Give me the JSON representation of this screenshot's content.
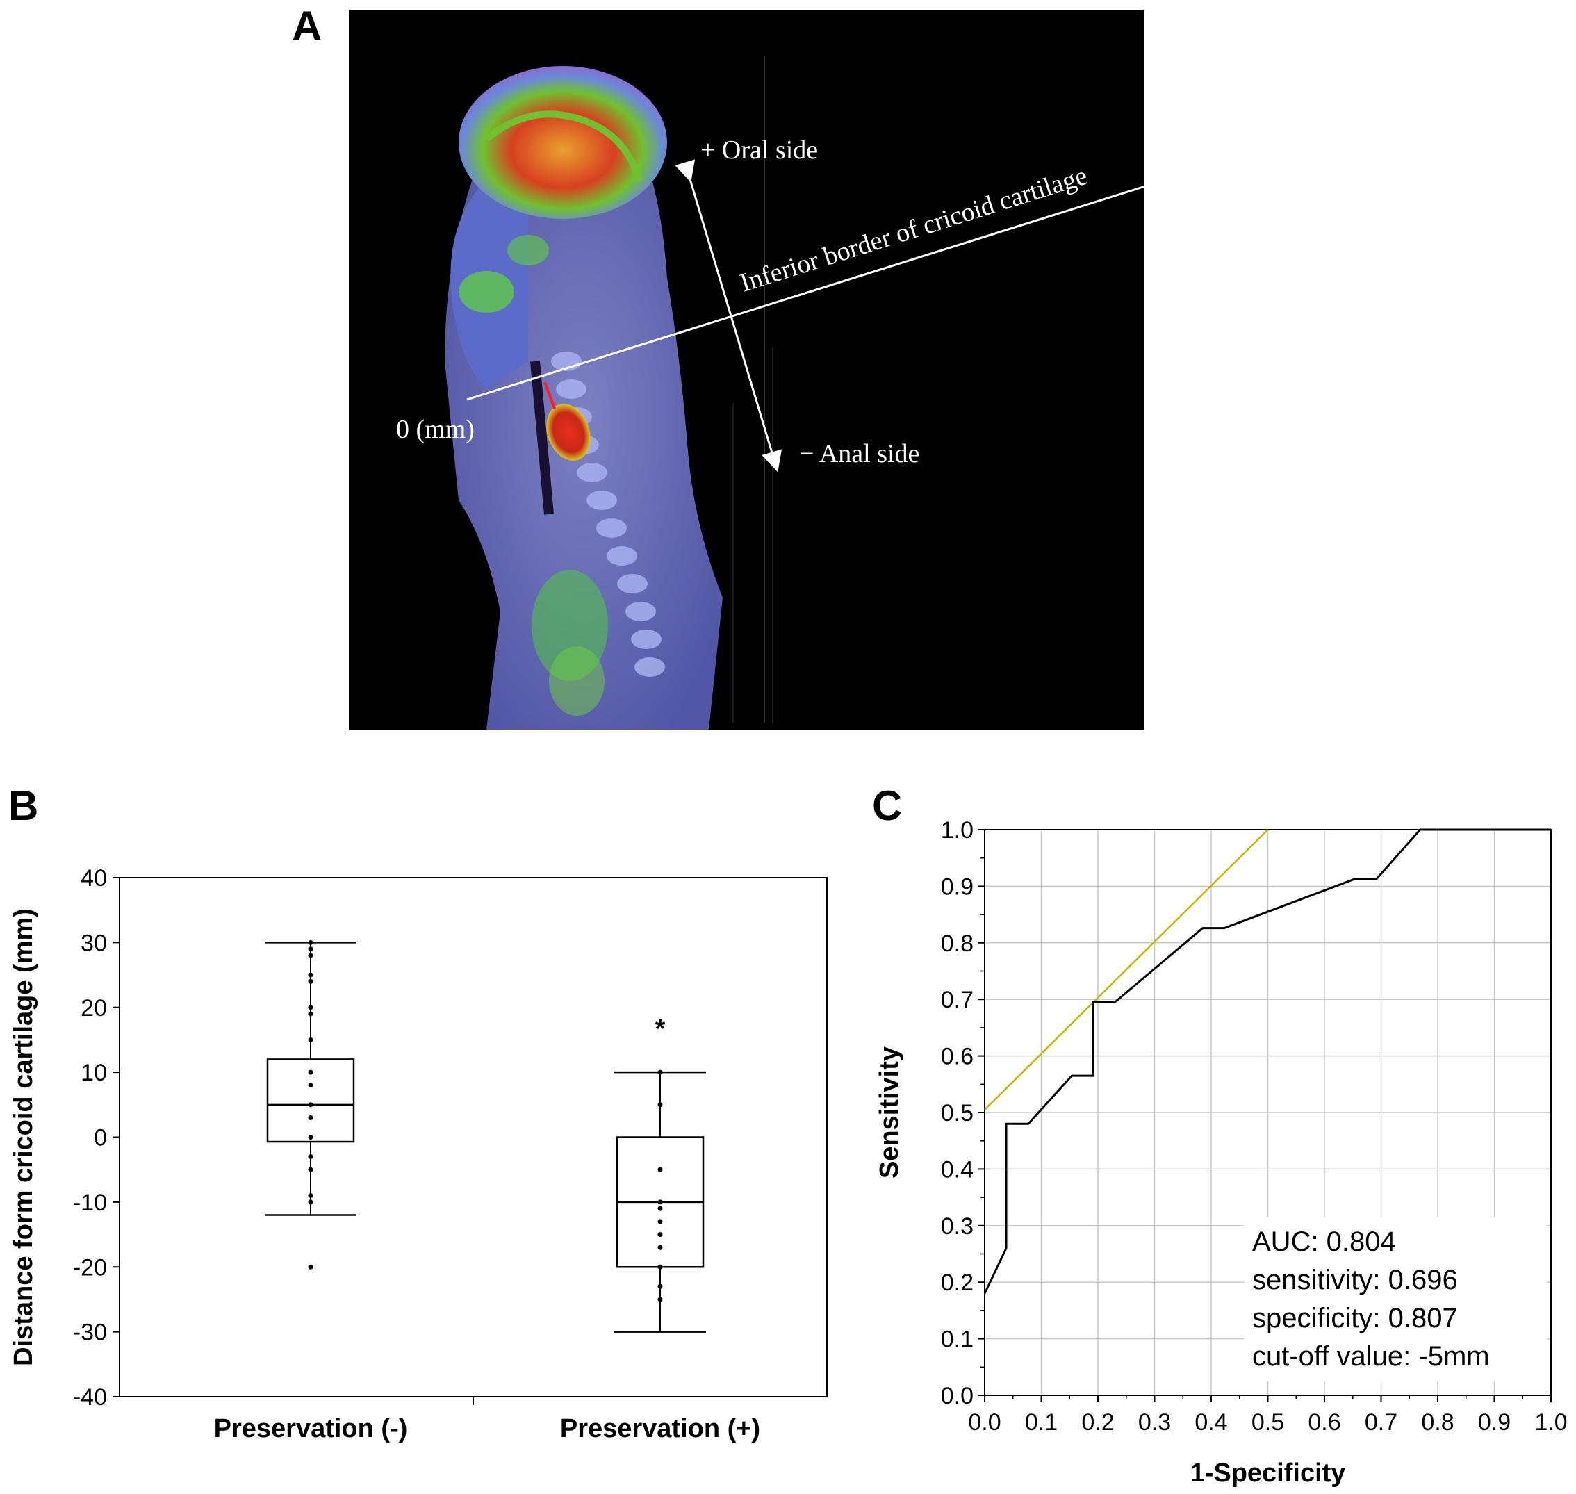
{
  "panels": {
    "a": "A",
    "b": "B",
    "c": "C"
  },
  "scan": {
    "oral_label": "+  Oral side",
    "anal_label": "−  Anal side",
    "line_label": "Inferior border of cricoid cartilage",
    "zero_label": "0 (mm)"
  },
  "chart_data": [
    {
      "type": "box",
      "panel": "B",
      "ylabel": "Distance form cricoid cartilage (mm)",
      "ylim": [
        -40,
        40
      ],
      "yticks": [
        40,
        30,
        20,
        10,
        0,
        -10,
        -20,
        -30,
        -40
      ],
      "categories": [
        "Preservation (-)",
        "Preservation (+)"
      ],
      "boxes": [
        {
          "name": "Preservation (-)",
          "whisker_low": -12,
          "q1": -0.7,
          "median": 5,
          "q3": 12,
          "whisker_high": 30,
          "points": [
            30,
            29,
            28,
            25,
            24,
            20,
            19,
            15,
            10,
            8,
            5,
            3,
            0,
            -3,
            -5,
            -9,
            -10,
            -20
          ]
        },
        {
          "name": "Preservation (+)",
          "whisker_low": -30,
          "q1": -20,
          "median": -10,
          "q3": 0,
          "whisker_high": 10,
          "points": [
            10,
            5,
            -5,
            -10,
            -11,
            -13,
            -15,
            -17,
            -20,
            -23,
            -25
          ],
          "annotation": "*"
        }
      ]
    },
    {
      "type": "line",
      "panel": "C",
      "xlabel": "1-Specificity",
      "ylabel": "Sensitivity",
      "xlim": [
        0,
        1
      ],
      "ylim": [
        0,
        1
      ],
      "xticks": [
        "0.0",
        "0.1",
        "0.2",
        "0.3",
        "0.4",
        "0.5",
        "0.6",
        "0.7",
        "0.8",
        "0.9",
        "1.0"
      ],
      "yticks": [
        "1.0",
        "0.9",
        "0.8",
        "0.7",
        "0.6",
        "0.5",
        "0.4",
        "0.3",
        "0.2",
        "0.1",
        "0.0"
      ],
      "grid": true,
      "roc": {
        "x": [
          0,
          0.038,
          0.038,
          0.077,
          0.154,
          0.192,
          0.192,
          0.231,
          0.385,
          0.423,
          0.654,
          0.692,
          0.769,
          1.0
        ],
        "y": [
          0.18,
          0.26,
          0.48,
          0.48,
          0.565,
          0.565,
          0.696,
          0.696,
          0.826,
          0.826,
          0.913,
          0.913,
          1.0,
          1.0
        ]
      },
      "tangent": {
        "x": [
          0,
          0.5
        ],
        "y": [
          0.505,
          1.0
        ]
      },
      "colors": {
        "roc": "#000000",
        "tangent": "#c8b400"
      },
      "stats": [
        "AUC: 0.804",
        "sensitivity: 0.696",
        "specificity: 0.807",
        "cut-off value: -5mm"
      ]
    }
  ]
}
